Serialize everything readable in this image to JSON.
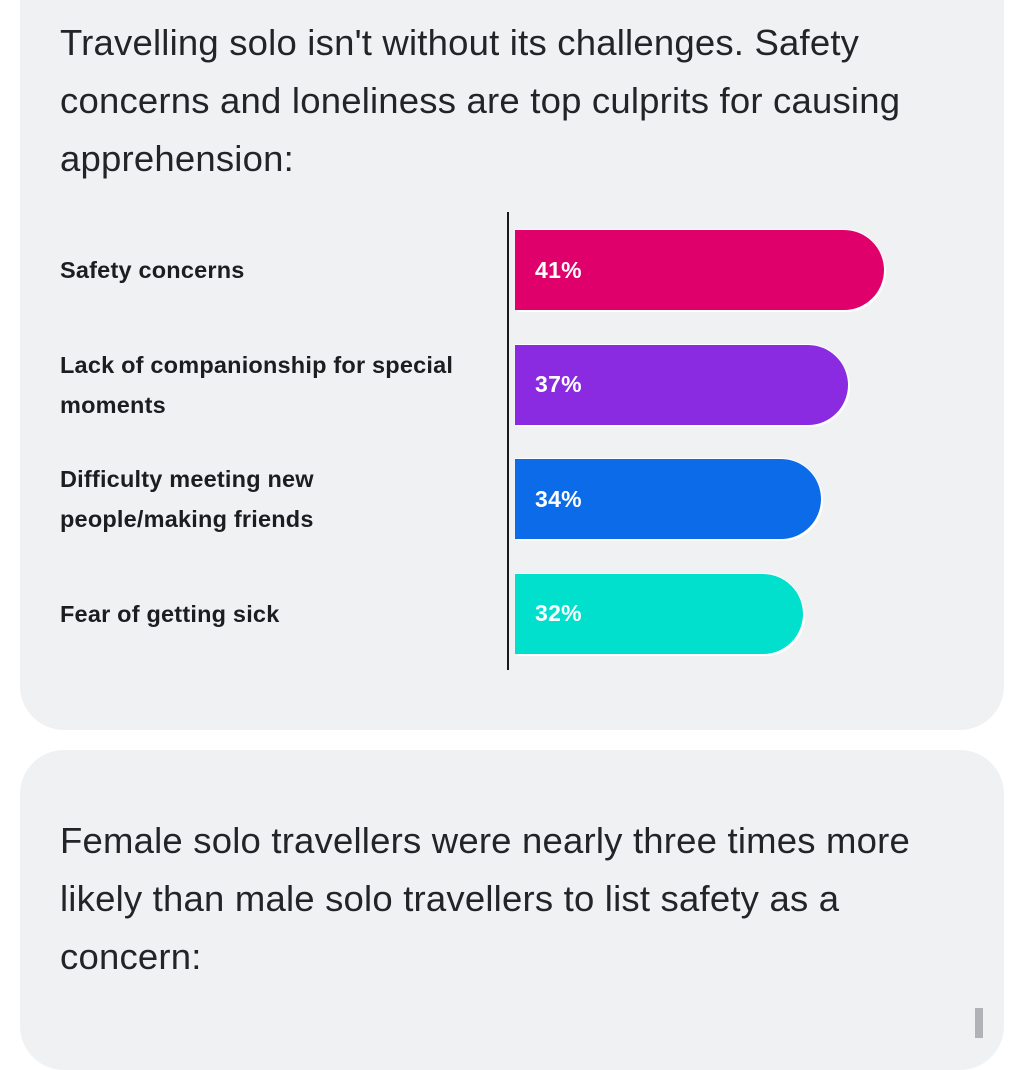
{
  "card1": {
    "intro": "Travelling solo isn't without its challenges. Safety concerns and loneliness are top culprits for causing apprehension:"
  },
  "chart_data": {
    "type": "bar",
    "orientation": "horizontal",
    "title": "",
    "xlabel": "",
    "ylabel": "",
    "xlim": [
      0,
      50
    ],
    "grid": false,
    "categories": [
      "Safety concerns",
      "Lack of companionship for special moments",
      "Difficulty meeting new people/making friends",
      "Fear of getting sick"
    ],
    "values": [
      41,
      37,
      34,
      32
    ],
    "value_labels": [
      "41%",
      "37%",
      "34%",
      "32%"
    ],
    "colors": [
      "#e0006c",
      "#8a2be2",
      "#0b6be8",
      "#00e0cc"
    ]
  },
  "card2": {
    "intro": "Female solo travellers were nearly three times more likely than male solo travellers to list safety as a concern:"
  }
}
